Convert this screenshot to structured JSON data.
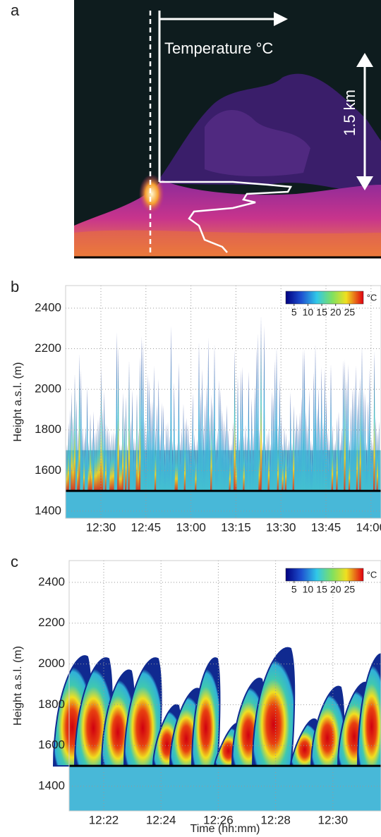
{
  "panels": [
    {
      "label": "a",
      "annotations": [
        "Temperature °C",
        "1.5 km"
      ]
    },
    {
      "label": "b",
      "type": "heatmap",
      "ylabel": "Height a.s.l. (m)",
      "ylim": [
        1365,
        2511
      ],
      "yticks": [
        1400,
        1600,
        1800,
        2000,
        2200,
        2400
      ],
      "xticks": [
        "12:30",
        "12:45",
        "13:00",
        "13:15",
        "13:30",
        "13:45",
        "14:00"
      ],
      "surface": 1500,
      "grid": true,
      "colorbar": {
        "unit": "°C",
        "clim": [
          2,
          30
        ],
        "ticks": [
          5,
          10,
          15,
          20,
          25
        ]
      }
    },
    {
      "label": "c",
      "type": "heatmap",
      "ylabel": "Height a.s.l. (m)",
      "xlabel": "Time (hh:mm)",
      "ylim": [
        1279,
        2507
      ],
      "yticks": [
        1400,
        1600,
        1800,
        2000,
        2200,
        2400
      ],
      "xticks": [
        "12:22",
        "12:24",
        "12:26",
        "12:28",
        "12:30"
      ],
      "surface": 1500,
      "grid": true,
      "colorbar": {
        "unit": "°C",
        "clim": [
          2,
          30
        ],
        "ticks": [
          5,
          10,
          15,
          20,
          25
        ]
      }
    }
  ]
}
